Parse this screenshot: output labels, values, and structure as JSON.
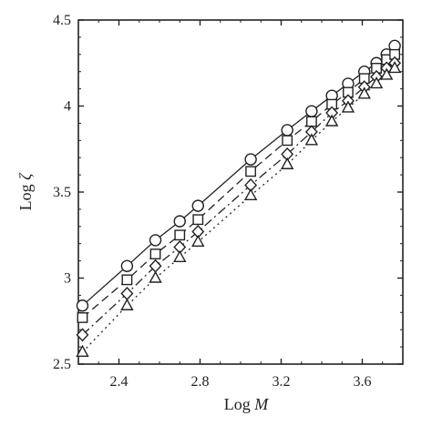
{
  "chart_data": {
    "type": "scatter",
    "title": "",
    "xlabel": "Log",
    "xlabel_var": "M",
    "ylabel": "Log",
    "ylabel_var": "ζ",
    "xlim": [
      2.2,
      3.8
    ],
    "ylim": [
      2.5,
      4.5
    ],
    "xticks": [
      2.4,
      2.8,
      3.2,
      3.6
    ],
    "xtick_labels": [
      "2.4",
      "2.8",
      "3.2",
      "3.6"
    ],
    "yticks": [
      2.5,
      3.0,
      3.5,
      4.0,
      4.5
    ],
    "ytick_labels": [
      "2.5",
      "3",
      "3.5",
      "4",
      "4.5"
    ],
    "grid": false,
    "legend": "none",
    "x": [
      2.22,
      2.44,
      2.58,
      2.7,
      2.79,
      3.05,
      3.23,
      3.35,
      3.45,
      3.53,
      3.61,
      3.67,
      3.72,
      3.76
    ],
    "series": [
      {
        "marker": "circle",
        "line": "solid",
        "values": [
          2.84,
          3.07,
          3.22,
          3.33,
          3.42,
          3.69,
          3.86,
          3.97,
          4.06,
          4.13,
          4.2,
          4.25,
          4.3,
          4.35
        ]
      },
      {
        "marker": "square",
        "line": "dashed",
        "values": [
          2.77,
          2.99,
          3.14,
          3.25,
          3.34,
          3.62,
          3.8,
          3.91,
          4.01,
          4.08,
          4.16,
          4.22,
          4.27,
          4.3
        ]
      },
      {
        "marker": "diamond",
        "line": "dashdot",
        "values": [
          2.67,
          2.91,
          3.07,
          3.18,
          3.27,
          3.54,
          3.72,
          3.85,
          3.96,
          4.03,
          4.11,
          4.17,
          4.22,
          4.25
        ]
      },
      {
        "marker": "triangle",
        "line": "dotted",
        "values": [
          2.57,
          2.84,
          3.0,
          3.12,
          3.21,
          3.48,
          3.66,
          3.8,
          3.91,
          3.99,
          4.07,
          4.13,
          4.18,
          4.22
        ]
      }
    ]
  }
}
